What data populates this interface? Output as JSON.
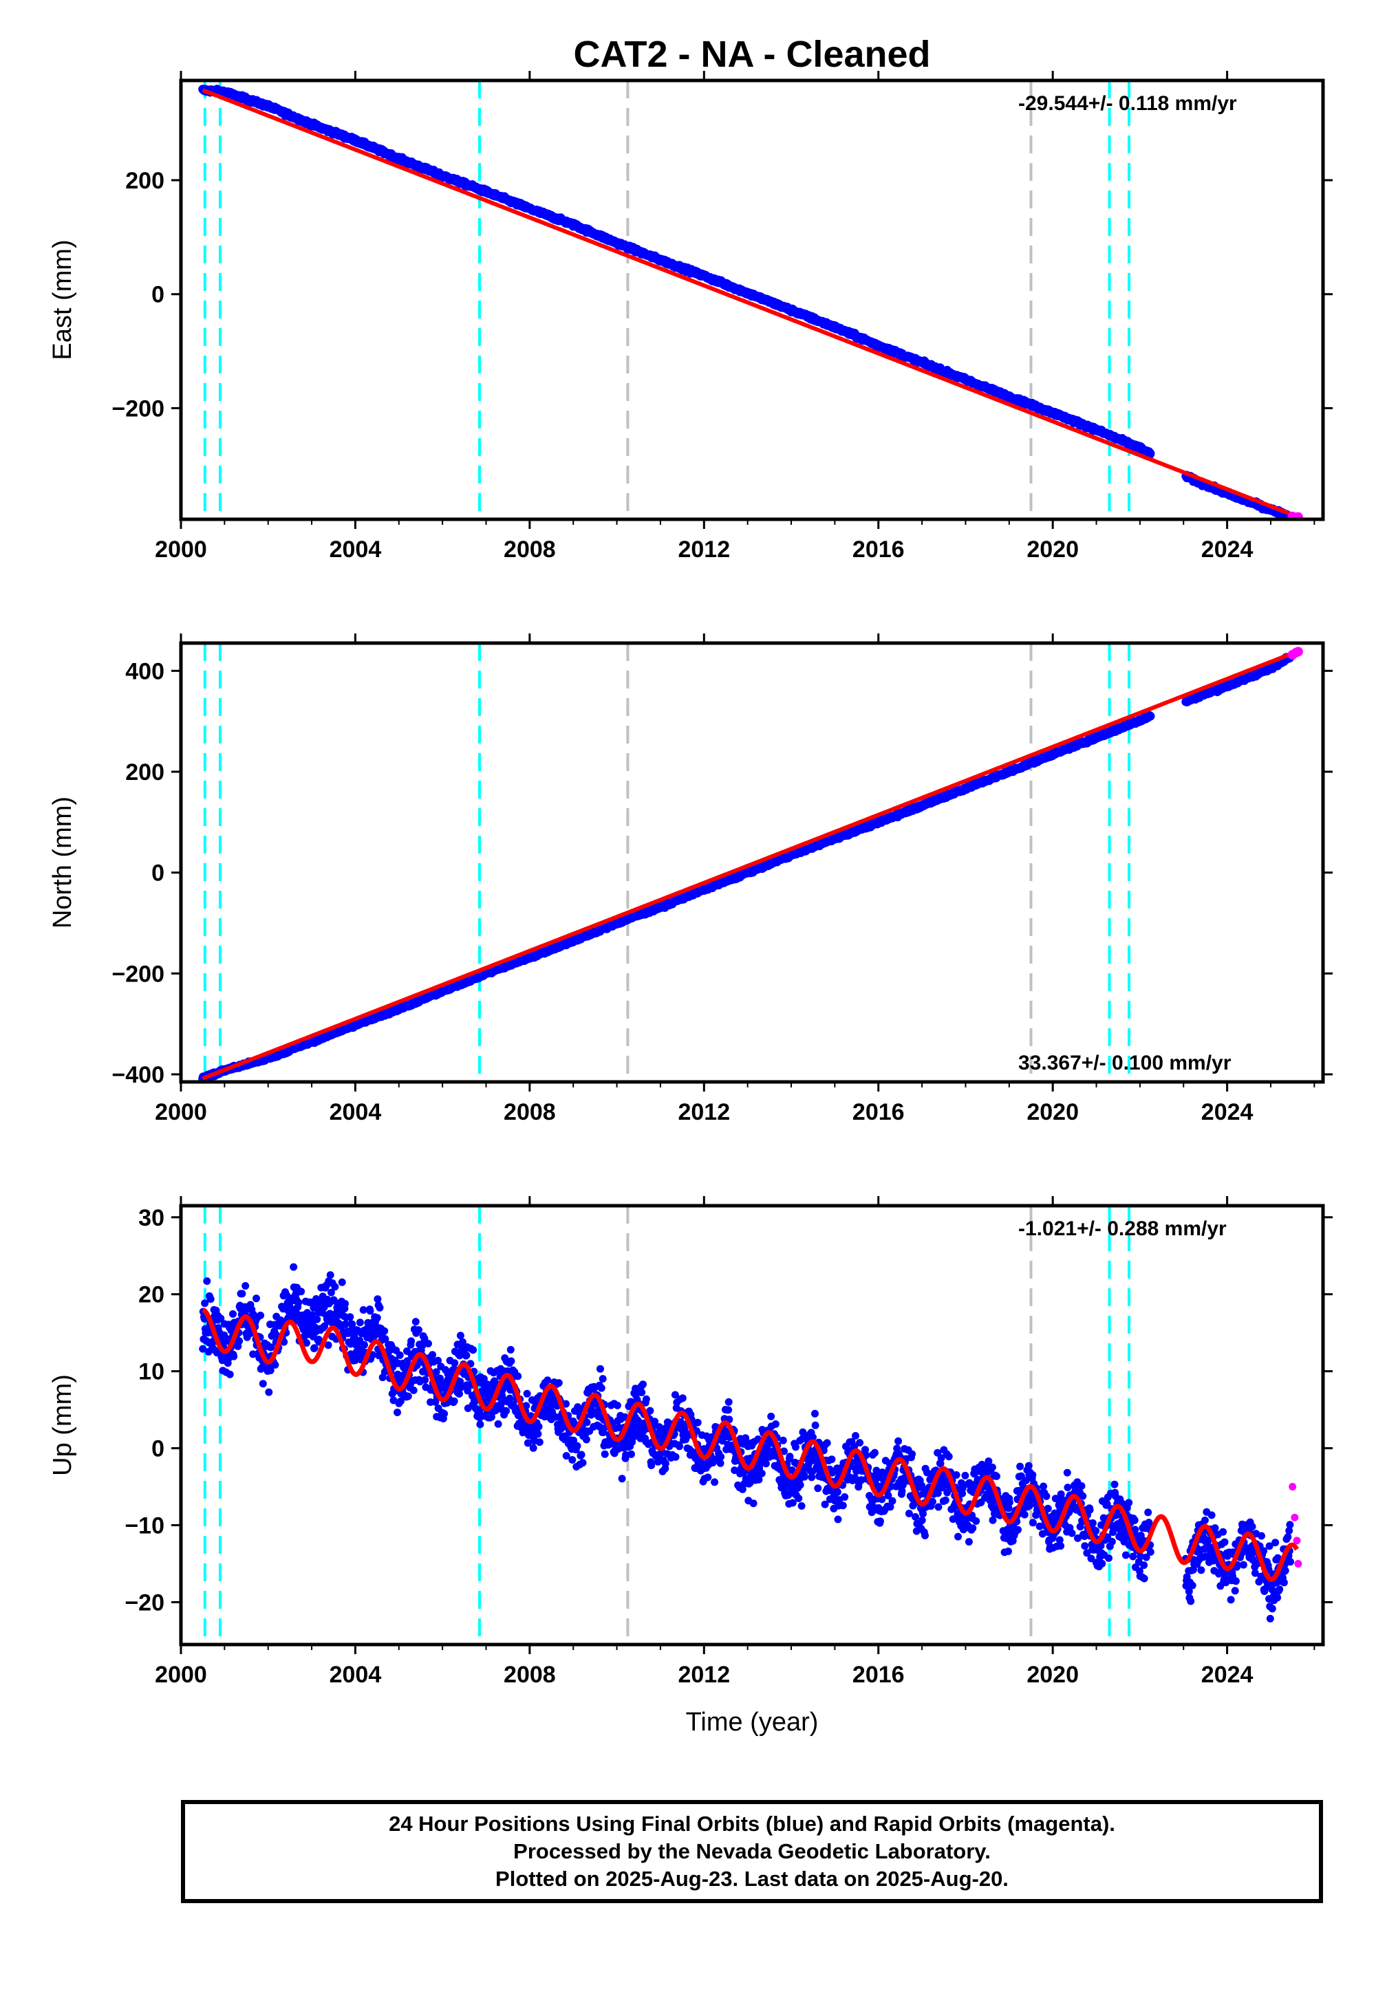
{
  "title": "CAT2  - NA - Cleaned",
  "colors": {
    "final": "#0000ff",
    "rapid": "#ff00ff",
    "model": "#ff0000",
    "equipment_change": "#00ffff",
    "other_event": "#c0c0c0"
  },
  "chart_data": [
    {
      "type": "scatter",
      "panel": "east",
      "ylabel": "East (mm)",
      "xlim": [
        2000.0,
        2026.2
      ],
      "ylim": [
        -395,
        375
      ],
      "yticks": [
        -200,
        0,
        200
      ],
      "xticks": [
        2000,
        2004,
        2008,
        2012,
        2016,
        2020,
        2024
      ],
      "rate_text": "-29.544+/- 0.118 mm/yr",
      "rate_position": "top-right",
      "series": [
        {
          "color": "blue",
          "x": [
            2000.5,
            2001.0,
            2002.0,
            2003.0,
            2004.0,
            2005.0,
            2006.0,
            2007.0,
            2008.0,
            2009.0,
            2010.0,
            2011.0,
            2012.0,
            2013.0,
            2014.0,
            2015.0,
            2016.0,
            2017.0,
            2018.0,
            2019.0,
            2020.0,
            2021.0,
            2022.0,
            2023.2,
            2024.0,
            2025.0,
            2025.45
          ],
          "y": [
            358,
            355,
            330,
            298,
            270,
            238,
            208,
            180,
            150,
            122,
            90,
            60,
            32,
            2,
            -28,
            -58,
            -90,
            -120,
            -150,
            -180,
            -208,
            -238,
            -270,
            -325,
            -350,
            -378,
            -390
          ]
        },
        {
          "color": "magenta",
          "x": [
            2025.5,
            2025.58,
            2025.63
          ],
          "y": [
            -390,
            -392,
            -391
          ]
        },
        {
          "color": "red",
          "x": [
            2000.5,
            2025.6
          ],
          "y": [
            358,
            -390
          ]
        }
      ]
    },
    {
      "type": "scatter",
      "panel": "north",
      "ylabel": "North (mm)",
      "xlim": [
        2000.0,
        2026.2
      ],
      "ylim": [
        -415,
        455
      ],
      "yticks": [
        -400,
        -200,
        0,
        200,
        400
      ],
      "xticks": [
        2000,
        2004,
        2008,
        2012,
        2016,
        2020,
        2024
      ],
      "rate_text": "33.367+/- 0.100 mm/yr",
      "rate_position": "bottom-right",
      "series": [
        {
          "color": "blue",
          "x": [
            2000.5,
            2001.0,
            2002.0,
            2003.0,
            2004.0,
            2005.0,
            2006.0,
            2007.0,
            2008.0,
            2009.0,
            2010.0,
            2011.0,
            2012.0,
            2013.0,
            2014.0,
            2015.0,
            2016.0,
            2017.0,
            2018.0,
            2019.0,
            2020.0,
            2021.0,
            2022.0,
            2023.2,
            2024.0,
            2025.0,
            2025.45
          ],
          "y": [
            -408,
            -392,
            -368,
            -335,
            -302,
            -270,
            -235,
            -200,
            -168,
            -135,
            -100,
            -68,
            -33,
            0,
            35,
            68,
            100,
            133,
            167,
            200,
            235,
            268,
            302,
            345,
            370,
            405,
            430
          ]
        },
        {
          "color": "magenta",
          "x": [
            2025.5,
            2025.58,
            2025.63
          ],
          "y": [
            432,
            436,
            438
          ]
        },
        {
          "color": "red",
          "x": [
            2000.5,
            2025.6
          ],
          "y": [
            -408,
            438
          ]
        }
      ]
    },
    {
      "type": "scatter",
      "panel": "up",
      "ylabel": "Up (mm)",
      "xlabel": "Time (year)",
      "xlim": [
        2000.0,
        2026.2
      ],
      "ylim": [
        -25.5,
        31.5
      ],
      "yticks": [
        -20,
        -10,
        0,
        10,
        20,
        30
      ],
      "xticks": [
        2000,
        2004,
        2008,
        2012,
        2016,
        2020,
        2024
      ],
      "rate_text": "-1.021+/- 0.288 mm/yr",
      "rate_position": "top-right",
      "series": [
        {
          "color": "blue",
          "name": "",
          "x": [
            2000.5,
            2001.0,
            2002.0,
            2003.0,
            2004.0,
            2005.0,
            2006.0,
            2007.0,
            2008.0,
            2009.0,
            2010.0,
            2011.0,
            2012.0,
            2013.0,
            2014.0,
            2015.0,
            2016.0,
            2017.0,
            2018.0,
            2019.0,
            2020.0,
            2021.0,
            2022.0,
            2023.2,
            2024.0,
            2025.0,
            2025.45
          ],
          "y": [
            15,
            16,
            14,
            18,
            15,
            11,
            9,
            8,
            5,
            4,
            3,
            2,
            1,
            -1,
            -2,
            -3,
            -4,
            -5,
            -6,
            -7,
            -8,
            -10,
            -11,
            -14,
            -13,
            -15,
            -16
          ]
        },
        {
          "color": "magenta",
          "x": [
            2025.5,
            2025.55,
            2025.6,
            2025.63
          ],
          "y": [
            -5,
            -9,
            -12,
            -15
          ]
        },
        {
          "color": "red",
          "x": [
            2000.5,
            2025.6
          ],
          "y": [
            15.5,
            -15
          ]
        }
      ]
    }
  ],
  "events": {
    "equipment_change": [
      2000.55,
      2000.9,
      2006.85,
      2021.3,
      2021.75
    ],
    "other_event": [
      2010.25,
      2019.5
    ]
  },
  "footer": {
    "line1": "24 Hour Positions Using Final Orbits (blue) and Rapid Orbits (magenta).",
    "line2": "Processed by the Nevada Geodetic Laboratory.",
    "line3": "Plotted on 2025-Aug-23. Last data on 2025-Aug-20."
  }
}
